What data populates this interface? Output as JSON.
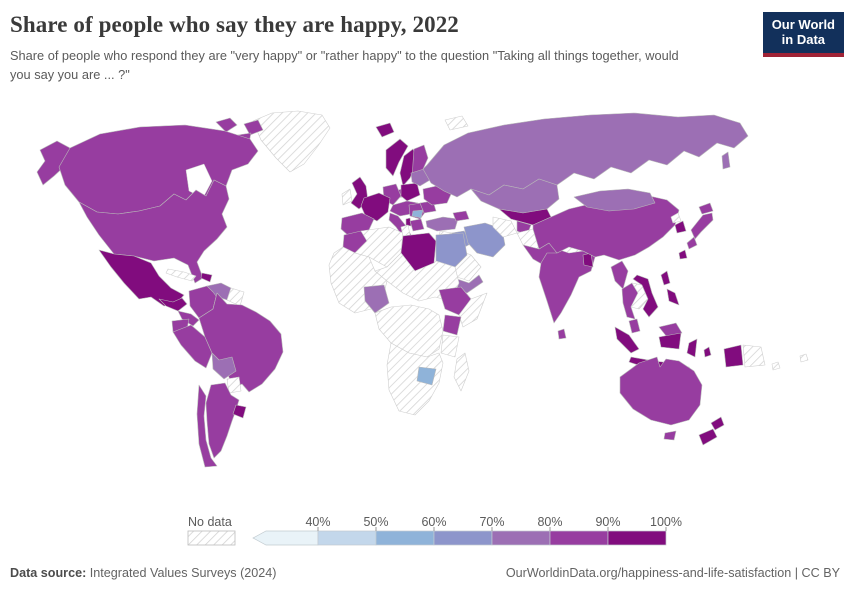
{
  "header": {
    "title": "Share of people who say they are happy, 2022",
    "subtitle": "Share of people who respond they are \"very happy\" or \"rather happy\" to the question \"Taking all things together, would you say you are ... ?\"",
    "logo": {
      "line1": "Our World",
      "line2": "in Data"
    }
  },
  "legend": {
    "no_data_label": "No data",
    "tick_labels": [
      "40%",
      "50%",
      "60%",
      "70%",
      "80%",
      "90%",
      "100%"
    ],
    "bin_order": [
      "<40",
      "40-50",
      "50-60",
      "60-70",
      "70-80",
      "80-90",
      "90-100"
    ]
  },
  "map": {
    "palette": {
      "<40": "#e9f3f8",
      "40-50": "#c3d7eb",
      "50-60": "#8fb3d9",
      "60-70": "#8d95cb",
      "70-80": "#9c6fb4",
      "80-90": "#973da0",
      "90-100": "#810c7e",
      "no-data": "hatch"
    }
  },
  "footer": {
    "source_label": "Data source:",
    "source_value": " Integrated Values Surveys (2024)",
    "right_text": "OurWorldinData.org/happiness-and-life-satisfaction | CC BY"
  },
  "chart_data": {
    "type": "heatmap",
    "subtype": "choropleth-world-map",
    "title": "Share of people who say they are happy, 2022",
    "unit": "%",
    "bins": [
      "<40",
      "40-50",
      "50-60",
      "60-70",
      "70-80",
      "80-90",
      "90-100",
      "no-data"
    ],
    "legend_position": "bottom",
    "countries": {
      "greenland": "no-data",
      "svalbard": "no-data",
      "canadian-arctic-1": "80-90",
      "canadian-arctic-2": "80-90",
      "canadian-arctic-3": "80-90",
      "alaska": "80-90",
      "canada": "80-90",
      "united-states": "80-90",
      "mexico": "90-100",
      "guatemala": "90-100",
      "panama-costa-rica": "80-90",
      "cuba": "no-data",
      "hispaniola": "90-100",
      "colombia": "80-90",
      "venezuela": "70-80",
      "guyana": "no-data",
      "ecuador": "80-90",
      "peru": "80-90",
      "brazil": "80-90",
      "bolivia": "70-80",
      "paraguay": "no-data",
      "uruguay": "90-100",
      "argentina": "80-90",
      "chile": "80-90",
      "iceland": "90-100",
      "united-kingdom": "90-100",
      "ireland": "no-data",
      "norway": "90-100",
      "sweden": "90-100",
      "finland": "80-90",
      "denmark": "80-90",
      "germany": "80-90",
      "poland": "90-100",
      "france": "90-100",
      "spain": "80-90",
      "central-europe": "80-90",
      "italy": "80-90",
      "serbia": "80-90",
      "bulgaria": "50-60",
      "albania": "90-100",
      "greece": "80-90",
      "romania": "80-90",
      "ukraine": "80-90",
      "belarus-baltics": "70-80",
      "russia": "70-80",
      "sakhalin": "70-80",
      "turkey": "70-80",
      "caucasus": "80-90",
      "syria": "no-data",
      "iraq": "60-70",
      "iran": "60-70",
      "saudi-arabia": "no-data",
      "yemen": "70-80",
      "kazakhstan": "70-80",
      "uzbekistan": "90-100",
      "turkmenistan": "no-data",
      "tajikistan": "80-90",
      "afghanistan": "no-data",
      "pakistan": "80-90",
      "india": "80-90",
      "sri-lanka": "80-90",
      "nepal": "no-data",
      "bangladesh": "90-100",
      "china": "80-90",
      "mongolia": "70-80",
      "north-korea": "no-data",
      "south-korea": "90-100",
      "japan-hokkaido": "80-90",
      "japan-honshu": "80-90",
      "japan-kyushu": "80-90",
      "taiwan": "90-100",
      "myanmar": "80-90",
      "thailand": "80-90",
      "laos-cambodia": "no-data",
      "vietnam": "90-100",
      "malaysia-peninsula": "80-90",
      "malaysia-borneo": "80-90",
      "indonesia-sumatra": "90-100",
      "indonesia-java": "90-100",
      "indonesia-borneo": "90-100",
      "indonesia-sulawesi": "90-100",
      "indonesia-lesser-sunda": "90-100",
      "indonesia-maluku": "90-100",
      "philippines-luzon": "90-100",
      "philippines-mindanao": "90-100",
      "indonesia-papua": "90-100",
      "papua-new-guinea": "no-data",
      "new-caledonia": "no-data",
      "fiji": "no-data",
      "australia": "80-90",
      "tasmania": "80-90",
      "new-zealand-north": "90-100",
      "new-zealand-south": "90-100",
      "morocco": "80-90",
      "algeria": "no-data",
      "tunisia": "no-data",
      "libya": "90-100",
      "egypt": "60-70",
      "west-africa": "no-data",
      "sahel-sudan": "no-data",
      "nigeria": "70-80",
      "ethiopia": "80-90",
      "somalia": "no-data",
      "kenya": "80-90",
      "central-africa": "no-data",
      "tanzania": "no-data",
      "southern-africa": "no-data",
      "zimbabwe": "50-60",
      "madagascar": "no-data"
    }
  }
}
